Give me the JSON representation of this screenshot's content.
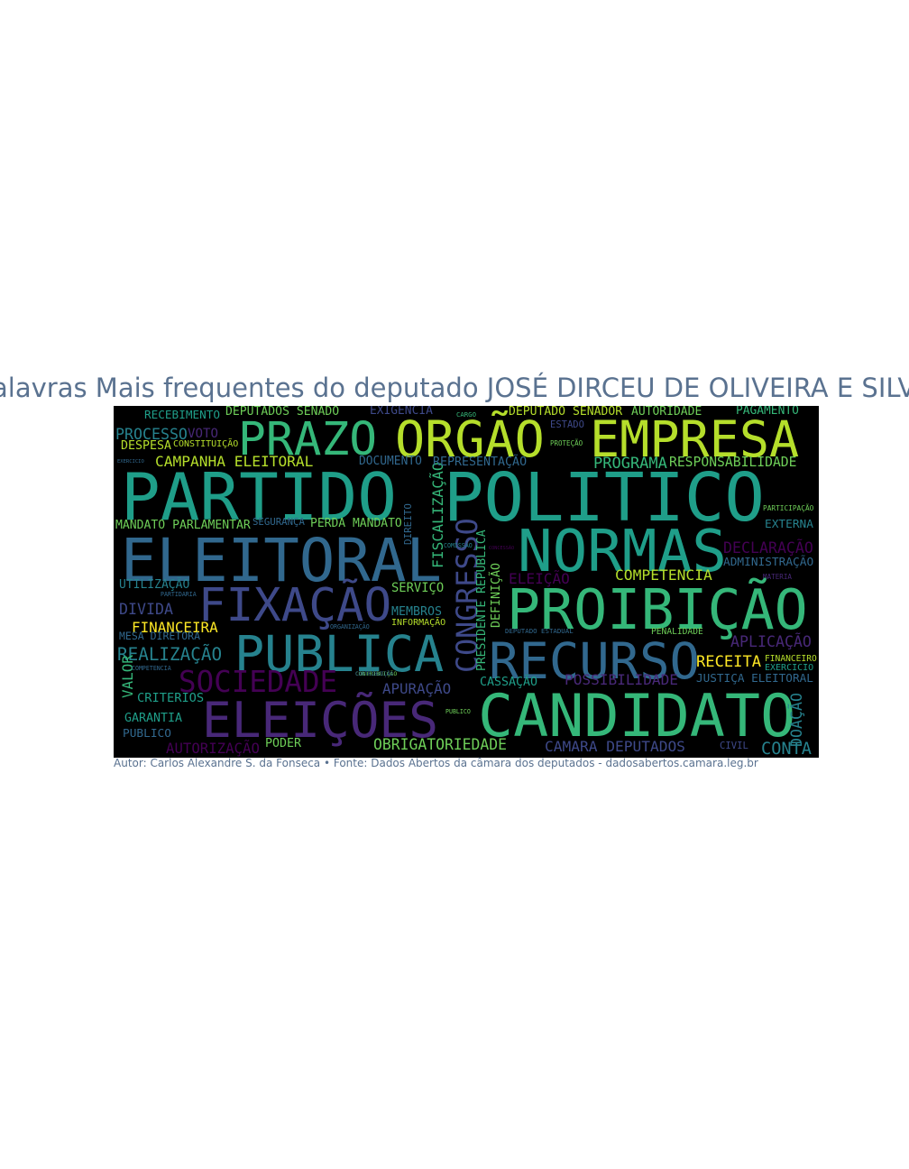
{
  "title": "Palavras Mais frequentes do deputado JOSÉ DIRCEU DE OLIVEIRA E SILVA",
  "caption": "Autor: Carlos Alexandre S. da Fonseca • Fonte: Dados Abertos da câmara dos deputados - dadosabertos.camara.leg.br",
  "colors": {
    "background": "#000000",
    "title": "#5a7290",
    "palette": [
      "#440154",
      "#482878",
      "#3e4989",
      "#31688e",
      "#26828e",
      "#1f9e89",
      "#35b779",
      "#6ece58",
      "#b5de2b",
      "#fde725"
    ]
  },
  "chart_data": {
    "type": "wordcloud",
    "words": [
      {
        "text": "PARTIDO",
        "weight": 100,
        "color": "#1f9e89"
      },
      {
        "text": "POLITICO",
        "weight": 98,
        "color": "#1f9e89"
      },
      {
        "text": "ELEITORAL",
        "weight": 90,
        "color": "#31688e"
      },
      {
        "text": "CANDIDATO",
        "weight": 85,
        "color": "#35b779"
      },
      {
        "text": "NORMAS",
        "weight": 80,
        "color": "#1f9e89"
      },
      {
        "text": "PROIBIÇÃO",
        "weight": 78,
        "color": "#35b779"
      },
      {
        "text": "ELEIÇÕES",
        "weight": 75,
        "color": "#482878"
      },
      {
        "text": "PUBLICA",
        "weight": 72,
        "color": "#26828e"
      },
      {
        "text": "FIXAÇÃO",
        "weight": 70,
        "color": "#3e4989"
      },
      {
        "text": "RECURSO",
        "weight": 68,
        "color": "#31688e"
      },
      {
        "text": "EMPRESA",
        "weight": 66,
        "color": "#b5de2b"
      },
      {
        "text": "ORGÃO",
        "weight": 64,
        "color": "#b5de2b"
      },
      {
        "text": "PRAZO",
        "weight": 62,
        "color": "#35b779"
      },
      {
        "text": "CONGRESSO",
        "weight": 50,
        "color": "#3e4989"
      },
      {
        "text": "SOCIEDADE",
        "weight": 48,
        "color": "#440154"
      },
      {
        "text": "CAMPANHA ELEITORAL",
        "weight": 32,
        "color": "#b5de2b"
      },
      {
        "text": "PROCESSO",
        "weight": 34,
        "color": "#26828e"
      },
      {
        "text": "REALIZAÇÃO",
        "weight": 34,
        "color": "#26828e"
      },
      {
        "text": "DIVIDA",
        "weight": 34,
        "color": "#3e4989"
      },
      {
        "text": "FISCALIZAÇÃO",
        "weight": 30,
        "color": "#35b779"
      },
      {
        "text": "DECLARAÇÃO",
        "weight": 30,
        "color": "#440154"
      },
      {
        "text": "APLICAÇÃO",
        "weight": 30,
        "color": "#482878"
      },
      {
        "text": "OBRIGATORIEDADE",
        "weight": 30,
        "color": "#6ece58"
      },
      {
        "text": "CAMARA DEPUTADOS",
        "weight": 30,
        "color": "#3e4989"
      },
      {
        "text": "APURAÇÃO",
        "weight": 30,
        "color": "#3e4989"
      },
      {
        "text": "AUTORIZAÇÃO",
        "weight": 28,
        "color": "#440154"
      },
      {
        "text": "COMPETENCIA",
        "weight": 28,
        "color": "#b5de2b"
      },
      {
        "text": "POSSIBILIDADE",
        "weight": 28,
        "color": "#482878"
      },
      {
        "text": "CONTA",
        "weight": 28,
        "color": "#26828e"
      },
      {
        "text": "FINANCEIRA",
        "weight": 26,
        "color": "#fde725"
      },
      {
        "text": "RECEITA",
        "weight": 26,
        "color": "#fde725"
      },
      {
        "text": "JUSTIÇA ELEITORAL",
        "weight": 26,
        "color": "#31688e"
      },
      {
        "text": "DEFINIÇÃO",
        "weight": 24,
        "color": "#6ece58"
      },
      {
        "text": "PRESIDENTE REPUBLICA",
        "weight": 24,
        "color": "#35b779"
      },
      {
        "text": "ELEIÇÃO",
        "weight": 24,
        "color": "#440154"
      },
      {
        "text": "CRITERIOS",
        "weight": 24,
        "color": "#1f9e89"
      },
      {
        "text": "EXTERNA",
        "weight": 24,
        "color": "#26828e"
      },
      {
        "text": "ADMINISTRAÇÃO",
        "weight": 24,
        "color": "#31688e"
      },
      {
        "text": "RECEBIMENTO",
        "weight": 24,
        "color": "#1f9e89"
      },
      {
        "text": "PAGAMENTO",
        "weight": 22,
        "color": "#35b779"
      },
      {
        "text": "DEPUTADOS SENADO",
        "weight": 22,
        "color": "#6ece58"
      },
      {
        "text": "EXIGENCIA",
        "weight": 22,
        "color": "#3e4989"
      },
      {
        "text": "DEPUTADO SENADOR",
        "weight": 22,
        "color": "#b5de2b"
      },
      {
        "text": "AUTORIDADE",
        "weight": 22,
        "color": "#6ece58"
      },
      {
        "text": "PROGRAMA",
        "weight": 22,
        "color": "#35b779"
      },
      {
        "text": "RESPONSABILIDADE",
        "weight": 22,
        "color": "#6ece58"
      },
      {
        "text": "REPRESENTAÇÃO",
        "weight": 22,
        "color": "#31688e"
      },
      {
        "text": "DOCUMENTO",
        "weight": 22,
        "color": "#31688e"
      },
      {
        "text": "MANDATO PARLAMENTAR",
        "weight": 22,
        "color": "#6ece58"
      },
      {
        "text": "PERDA MANDATO",
        "weight": 22,
        "color": "#6ece58"
      },
      {
        "text": "UTILIZAÇÃO",
        "weight": 22,
        "color": "#26828e"
      },
      {
        "text": "VOTO",
        "weight": 22,
        "color": "#482878"
      },
      {
        "text": "DESPESA",
        "weight": 22,
        "color": "#b5de2b"
      },
      {
        "text": "CONSTITUIÇÃO",
        "weight": 18,
        "color": "#b5de2b"
      },
      {
        "text": "SERVIÇO",
        "weight": 22,
        "color": "#6ece58"
      },
      {
        "text": "MEMBROS",
        "weight": 20,
        "color": "#26828e"
      },
      {
        "text": "INFORMAÇÃO",
        "weight": 18,
        "color": "#b5de2b"
      },
      {
        "text": "DIREITO",
        "weight": 20,
        "color": "#31688e"
      },
      {
        "text": "CASSAÇÃO",
        "weight": 22,
        "color": "#1f9e89"
      },
      {
        "text": "PENALIDADE",
        "weight": 20,
        "color": "#6ece58"
      },
      {
        "text": "GARANTIA",
        "weight": 22,
        "color": "#1f9e89"
      },
      {
        "text": "PUBLICO",
        "weight": 22,
        "color": "#31688e"
      },
      {
        "text": "PODER",
        "weight": 22,
        "color": "#6ece58"
      },
      {
        "text": "VALOR",
        "weight": 22,
        "color": "#35b779"
      },
      {
        "text": "CIVIL",
        "weight": 18,
        "color": "#3e4989"
      },
      {
        "text": "DOAÇÃO",
        "weight": 22,
        "color": "#26828e"
      },
      {
        "text": "DEPUTADO ESTADUAL",
        "weight": 16,
        "color": "#31688e"
      },
      {
        "text": "MESA DIRETORA",
        "weight": 16,
        "color": "#31688e"
      },
      {
        "text": "SEGURANÇA",
        "weight": 14,
        "color": "#31688e"
      },
      {
        "text": "CONTRIBUIÇÃO",
        "weight": 12,
        "color": "#6ece58"
      },
      {
        "text": "PROTEÇÃO",
        "weight": 12,
        "color": "#6ece58"
      },
      {
        "text": "ESTADO",
        "weight": 12,
        "color": "#3e4989"
      },
      {
        "text": "CARGO",
        "weight": 12,
        "color": "#35b779"
      },
      {
        "text": "COMISSÃO",
        "weight": 12,
        "color": "#26828e"
      },
      {
        "text": "PARTICIPAÇÃO",
        "weight": 12,
        "color": "#6ece58"
      },
      {
        "text": "MATERIA",
        "weight": 12,
        "color": "#482878"
      },
      {
        "text": "PUBLICO",
        "weight": 12,
        "color": "#6ece58"
      },
      {
        "text": "EXERCICIO",
        "weight": 10,
        "color": "#31688e"
      },
      {
        "text": "CONCESSÃO",
        "weight": 10,
        "color": "#440154"
      },
      {
        "text": "ORGANIZAÇÃO",
        "weight": 10,
        "color": "#31688e"
      },
      {
        "text": "PARTIDARIA",
        "weight": 10,
        "color": "#31688e"
      },
      {
        "text": "COMPETENCIA",
        "weight": 10,
        "color": "#31688e"
      },
      {
        "text": "CONTRIBUIÇÃO",
        "weight": 10,
        "color": "#31688e"
      },
      {
        "text": "FINANCEIRO",
        "weight": 14,
        "color": "#b5de2b"
      },
      {
        "text": "EXERCICIO",
        "weight": 12,
        "color": "#1f9e89"
      }
    ]
  }
}
